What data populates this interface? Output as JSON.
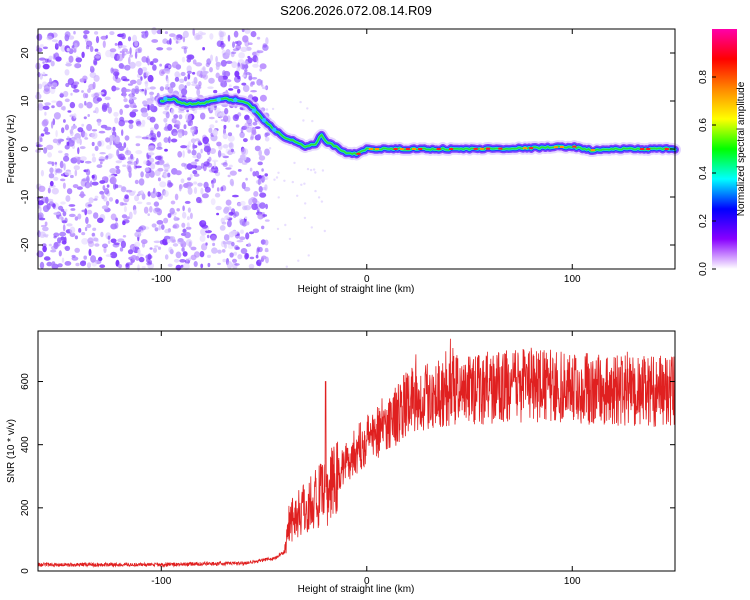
{
  "figure": {
    "title": "S206.2026.072.08.14.R09"
  },
  "chart_data": [
    {
      "type": "heatmap",
      "title": "S206.2026.072.08.14.R09",
      "xlabel": "Height of straight line (km)",
      "ylabel": "Frequency (Hz)",
      "xlim": [
        -160,
        150
      ],
      "ylim": [
        -25,
        25
      ],
      "xticks": [
        -100,
        0,
        100
      ],
      "yticks": [
        -20,
        -10,
        0,
        10,
        20
      ],
      "ridge": {
        "x": [
          -100,
          -95,
          -90,
          -80,
          -70,
          -60,
          -55,
          -50,
          -45,
          -40,
          -35,
          -30,
          -25,
          -22,
          -20,
          -15,
          -10,
          -5,
          0,
          20,
          50,
          80,
          100,
          110,
          120,
          150
        ],
        "y": [
          10,
          10.5,
          9.5,
          9.5,
          10.5,
          10,
          8.5,
          6,
          4,
          2.5,
          1.5,
          0.5,
          1,
          3,
          1.5,
          0.5,
          -1,
          -1,
          0,
          0,
          0,
          0.2,
          0.5,
          -0.3,
          0,
          0
        ]
      },
      "noise_region": {
        "x_from": -160,
        "x_to": -52
      },
      "colorbar": {
        "label": "Normalized spectral amplitude",
        "range": [
          0,
          1
        ],
        "ticks": [
          "0.0",
          "0.2",
          "0.4",
          "0.6",
          "0.8"
        ],
        "colors": [
          "#ffffff",
          "#8800ff",
          "#0000ff",
          "#00ffff",
          "#00ff00",
          "#ffff00",
          "#ff8800",
          "#ff0000",
          "#ff00aa"
        ]
      }
    },
    {
      "type": "line",
      "xlabel": "Height of straight line (km)",
      "ylabel": "SNR (10 * v/v)",
      "xlim": [
        -160,
        150
      ],
      "ylim": [
        0,
        760
      ],
      "xticks": [
        -100,
        0,
        100
      ],
      "yticks": [
        0,
        200,
        400,
        600
      ],
      "series": [
        {
          "name": "SNR",
          "color": "#e02020",
          "envelope_x": [
            -160,
            -100,
            -60,
            -45,
            -40,
            -38,
            -30,
            -25,
            -20,
            -15,
            -10,
            -5,
            0,
            10,
            20,
            30,
            40,
            60,
            80,
            100,
            120,
            150
          ],
          "envelope_y": [
            20,
            20,
            25,
            40,
            60,
            160,
            200,
            230,
            240,
            290,
            350,
            380,
            420,
            470,
            530,
            560,
            570,
            580,
            590,
            580,
            570,
            570
          ],
          "spikes": [
            {
              "x": -20,
              "y": 600
            }
          ]
        }
      ]
    }
  ]
}
